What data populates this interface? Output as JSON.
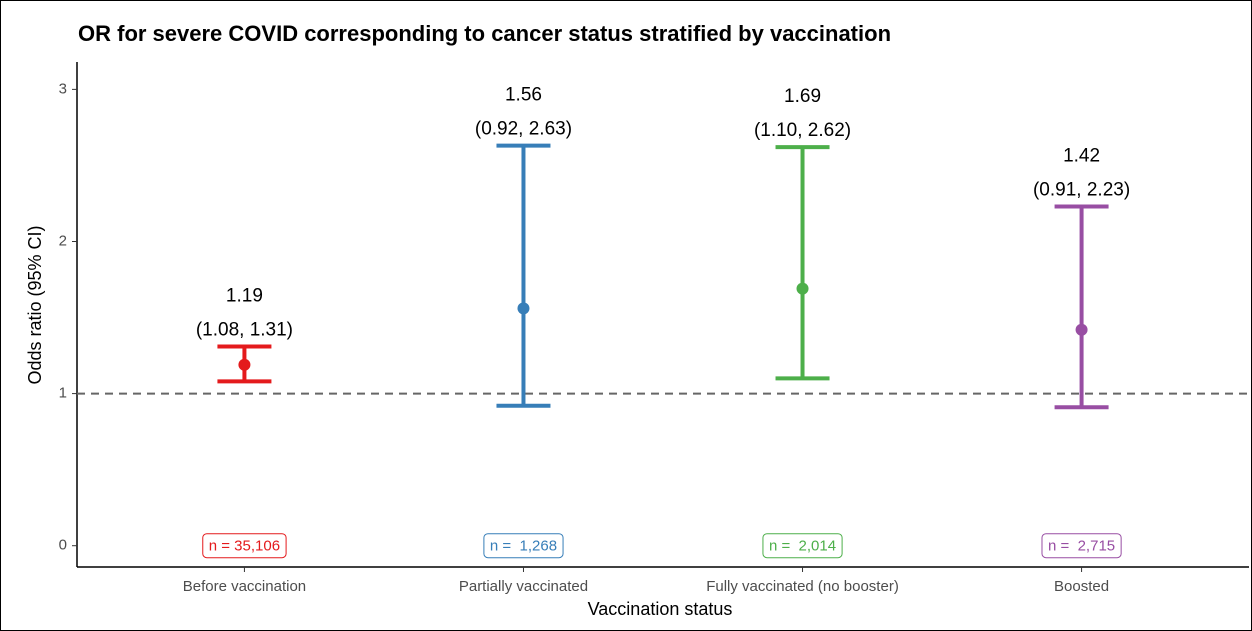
{
  "chart_data": {
    "type": "errorbar",
    "title": "OR for severe COVID corresponding to cancer status stratified by vaccination",
    "x_label": "Vaccination status",
    "y_label": "Odds ratio (95% CI)",
    "categories": [
      "Before vaccination",
      "Partially vaccinated",
      "Fully vaccinated (no booster)",
      "Boosted"
    ],
    "values": [
      1.19,
      1.56,
      1.69,
      1.42
    ],
    "lower": [
      1.08,
      0.92,
      1.1,
      0.91
    ],
    "upper": [
      1.31,
      2.63,
      2.62,
      2.23
    ],
    "ci_labels": [
      "(1.08, 1.31)",
      "(0.92, 2.63)",
      "(1.10, 2.62)",
      "(0.91, 2.23)"
    ],
    "n_labels": [
      "n = 35,106",
      "n =  1,268",
      "n =  2,014",
      "n =  2,715"
    ],
    "colors": [
      "#e41a1c",
      "#377eb8",
      "#4daf4a",
      "#984ea3"
    ],
    "reference_line": 1,
    "ylim": [
      -0.14,
      3.18
    ],
    "yticks": [
      0,
      1,
      2,
      3
    ]
  }
}
